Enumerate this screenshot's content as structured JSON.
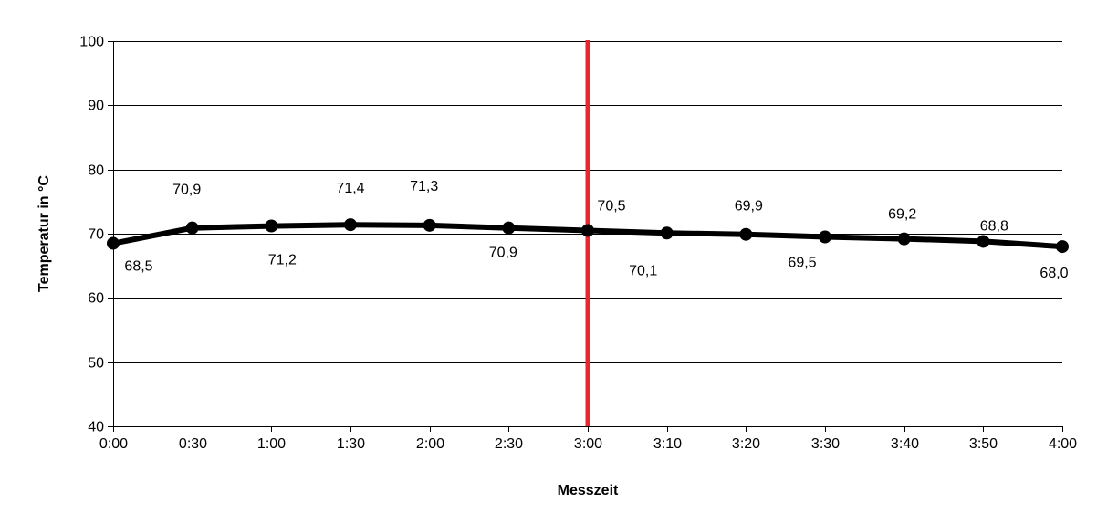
{
  "chart_data": {
    "type": "line",
    "categories": [
      "0:00",
      "0:30",
      "1:00",
      "1:30",
      "2:00",
      "2:30",
      "3:00",
      "3:10",
      "3:20",
      "3:30",
      "3:40",
      "3:50",
      "4:00"
    ],
    "series": [
      {
        "values": [
          68.5,
          70.9,
          71.2,
          71.4,
          71.3,
          70.9,
          70.5,
          70.1,
          69.9,
          69.5,
          69.2,
          68.8,
          68.0
        ]
      }
    ],
    "data_labels": [
      "68,5",
      "70,9",
      "71,2",
      "71,4",
      "71,3",
      "70,9",
      "70,5",
      "70,1",
      "69,9",
      "69,5",
      "69,2",
      "68,8",
      "68,0"
    ],
    "xlabel": "Messzeit",
    "ylabel": "Temperatur in °C",
    "ylim": [
      40,
      100
    ],
    "yticks": [
      40,
      50,
      60,
      70,
      80,
      90,
      100
    ],
    "grid": true,
    "marker_line": {
      "category": "3:00",
      "color": "#e8262b"
    },
    "colors": {
      "line": "#000000",
      "frame": "#000000",
      "grid": "#000000"
    }
  }
}
